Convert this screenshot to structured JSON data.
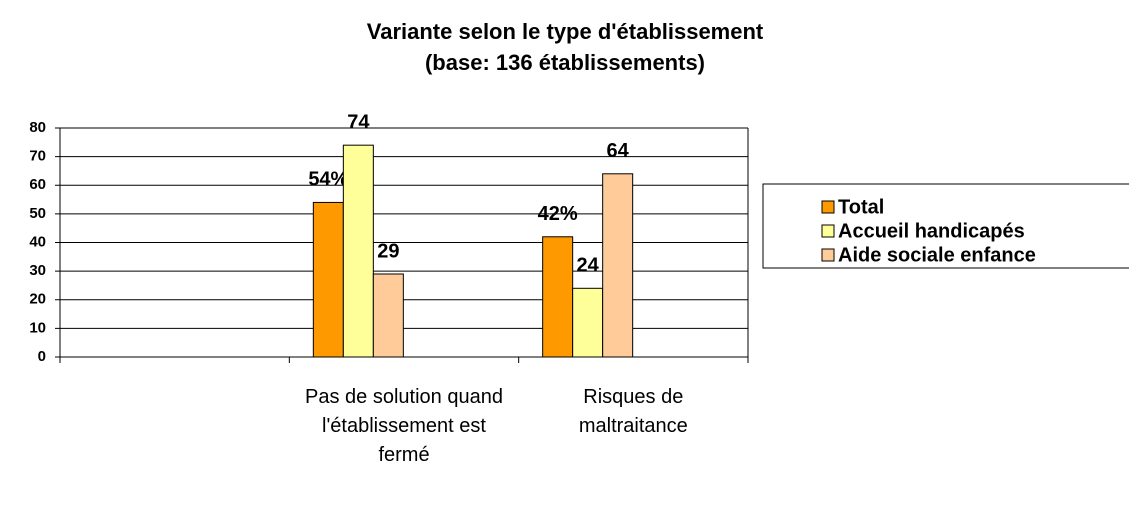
{
  "chart_data": {
    "type": "bar",
    "title": "Variante selon le type d'établissement",
    "subtitle": "(base: 136 établissements)",
    "categories": [
      null,
      "Pas de solution quand l'établissement est fermé",
      "Risques de maltraitance"
    ],
    "series": [
      {
        "name": "Total",
        "color": "#ff9900",
        "values": [
          null,
          54,
          42
        ],
        "value_labels": [
          null,
          "54%",
          "42%"
        ]
      },
      {
        "name": "Accueil handicapés",
        "color": "#ffff99",
        "values": [
          null,
          74,
          24
        ],
        "value_labels": [
          null,
          "74",
          "24"
        ]
      },
      {
        "name": "Aide sociale enfance",
        "color": "#ffcc99",
        "values": [
          null,
          29,
          64
        ],
        "value_labels": [
          null,
          "29",
          "64"
        ]
      }
    ],
    "ylim": [
      0,
      80
    ],
    "yticks": [
      0,
      10,
      20,
      30,
      40,
      50,
      60,
      70,
      80
    ],
    "grid": true,
    "legend": "right"
  }
}
